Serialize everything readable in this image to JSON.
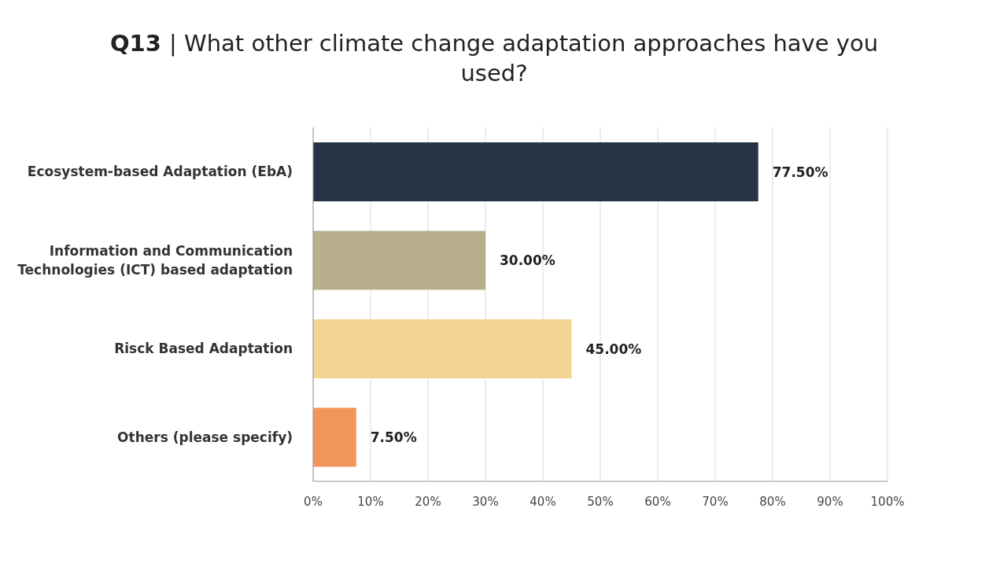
{
  "chart_data": {
    "type": "bar",
    "orientation": "horizontal",
    "title": "Q13 | What other climate change adaptation approaches have you used?",
    "categories": [
      "Ecosystem-based Adaptation (EbA)",
      "Information and Communication Technologies (ICT) based adaptation",
      "Risck Based Adaptation",
      "Others (please specify)"
    ],
    "values": [
      77.5,
      30,
      45,
      7.5
    ],
    "colors": [
      "#263545",
      "#b8b08c",
      "#f2d492",
      "#f2955a"
    ],
    "value_labels": [
      "77.50%",
      "30.00%",
      "45.00%",
      "7.50%"
    ],
    "xlim": [
      0,
      100
    ],
    "xticks": [
      {
        "value": 0,
        "label": "0%"
      },
      {
        "value": 10,
        "label": "10%"
      },
      {
        "value": 20,
        "label": "20%"
      },
      {
        "value": 30,
        "label": "30%"
      },
      {
        "value": 40,
        "label": "40%"
      },
      {
        "value": 50,
        "label": "50%"
      },
      {
        "value": 60,
        "label": "60%"
      },
      {
        "value": 70,
        "label": "70%"
      },
      {
        "value": 80,
        "label": "80%"
      },
      {
        "value": 90,
        "label": "90%"
      },
      {
        "value": 100,
        "label": "100%"
      }
    ],
    "grid": "x"
  }
}
